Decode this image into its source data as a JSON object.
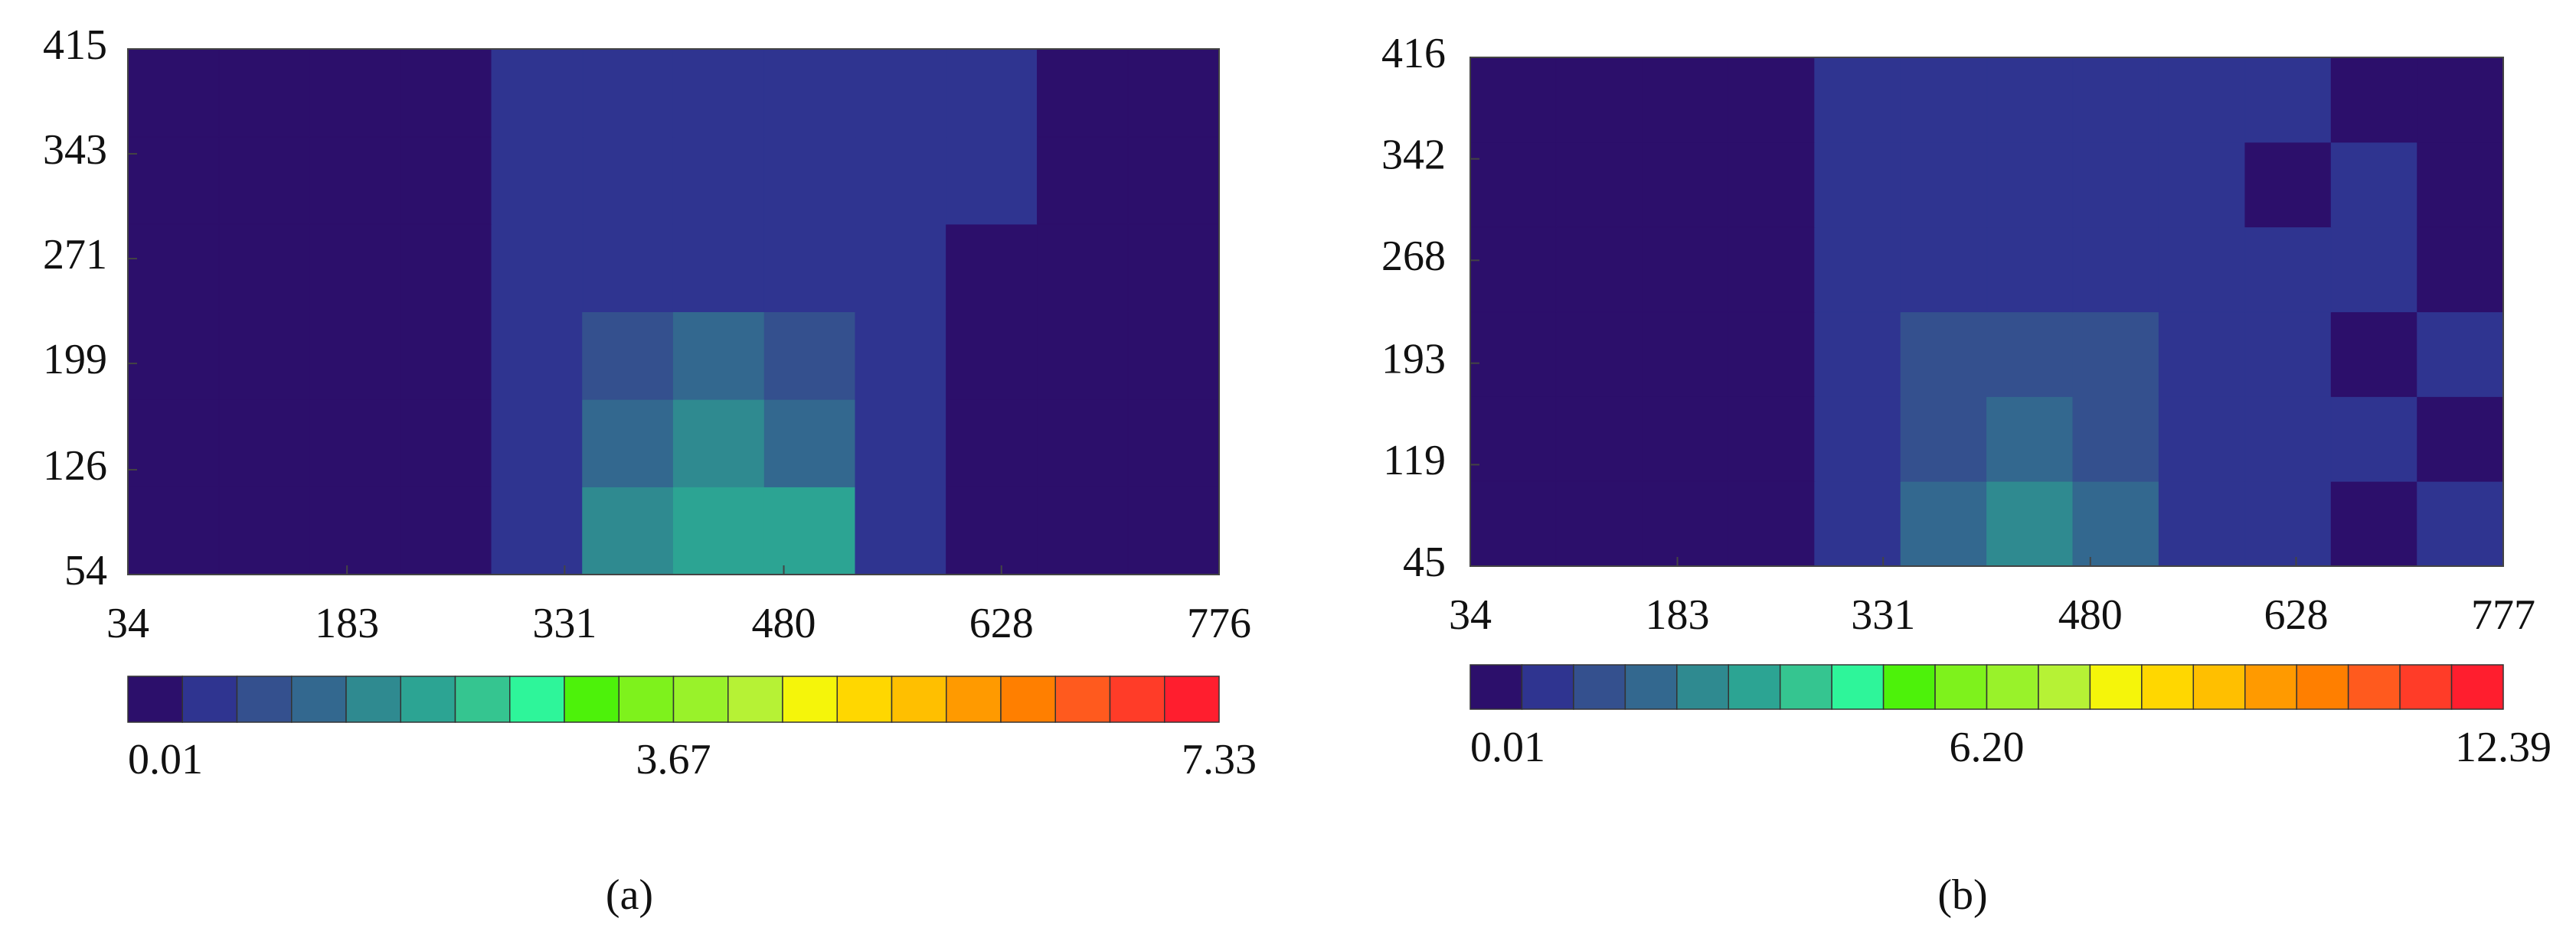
{
  "chart_data": [
    {
      "type": "contour",
      "caption": "(a)",
      "xlim": [
        34,
        776
      ],
      "xticks": [
        34,
        183,
        331,
        480,
        628,
        776
      ],
      "ylim": [
        54,
        415
      ],
      "yticks": [
        54,
        126,
        199,
        271,
        343,
        415
      ],
      "x": [
        64.9,
        126.8,
        188.6,
        250.4,
        312.3,
        374.1,
        435.9,
        497.8,
        559.6,
        621.4,
        683.3,
        745.1
      ],
      "y": [
        84.1,
        144.3,
        204.4,
        264.6,
        324.8,
        384.9
      ],
      "z": [
        [
          0.01,
          0.01,
          0.01,
          0.01,
          0.6,
          1.6,
          2.2,
          1.9,
          0.5,
          0.01,
          0.01,
          0.01
        ],
        [
          0.01,
          0.01,
          0.01,
          0.01,
          0.5,
          1.3,
          1.8,
          1.4,
          0.5,
          0.01,
          0.01,
          0.01
        ],
        [
          0.01,
          0.01,
          0.01,
          0.01,
          0.4,
          0.9,
          1.2,
          0.9,
          0.4,
          0.01,
          0.01,
          0.01
        ],
        [
          0.01,
          0.01,
          0.01,
          0.01,
          0.4,
          0.5,
          0.6,
          0.5,
          0.4,
          0.01,
          0.01,
          0.01
        ],
        [
          0.01,
          0.01,
          0.01,
          0.01,
          0.4,
          0.5,
          0.5,
          0.5,
          0.4,
          0.4,
          0.01,
          0.01
        ],
        [
          0.01,
          0.01,
          0.01,
          0.01,
          0.4,
          0.4,
          0.4,
          0.4,
          0.4,
          0.4,
          0.01,
          0.01
        ]
      ],
      "clim": [
        0.01,
        7.33
      ],
      "cticks": [
        0.01,
        3.67,
        7.33
      ],
      "colors": [
        "#2c0f6b",
        "#2f3490",
        "#34508e",
        "#33688f",
        "#2f8a90",
        "#2ca493",
        "#35c590",
        "#2ef59a",
        "#4df20a",
        "#7ef21c",
        "#99f22a",
        "#b6f235",
        "#f5f50a",
        "#ffd700",
        "#ffbf00",
        "#ff9a00",
        "#ff7f00",
        "#ff5a1e",
        "#ff3c28",
        "#ff1e2e"
      ]
    },
    {
      "type": "contour",
      "caption": "(b)",
      "xlim": [
        34,
        777
      ],
      "xticks": [
        34,
        183,
        331,
        480,
        628,
        777
      ],
      "ylim": [
        45,
        416
      ],
      "yticks": [
        45,
        119,
        193,
        268,
        342,
        416
      ],
      "x": [
        65.0,
        126.9,
        188.8,
        250.8,
        312.7,
        374.6,
        436.5,
        498.4,
        560.3,
        622.3,
        684.2,
        746.1
      ],
      "y": [
        75.9,
        137.8,
        199.6,
        261.4,
        323.3,
        385.1
      ],
      "z": [
        [
          0.01,
          0.01,
          0.01,
          0.01,
          0.8,
          2.0,
          2.6,
          2.3,
          0.8,
          0.7,
          0.5,
          0.7
        ],
        [
          0.01,
          0.01,
          0.01,
          0.01,
          0.8,
          1.6,
          2.2,
          1.7,
          0.8,
          0.7,
          0.7,
          0.5
        ],
        [
          0.01,
          0.01,
          0.01,
          0.01,
          0.8,
          1.3,
          1.7,
          1.3,
          0.8,
          0.7,
          0.5,
          0.7
        ],
        [
          0.01,
          0.01,
          0.01,
          0.01,
          0.7,
          0.8,
          0.9,
          0.8,
          0.8,
          0.7,
          0.7,
          0.5
        ],
        [
          0.01,
          0.01,
          0.01,
          0.01,
          0.7,
          0.8,
          0.8,
          0.8,
          0.8,
          0.5,
          0.7,
          0.5
        ],
        [
          0.01,
          0.01,
          0.01,
          0.01,
          0.7,
          0.7,
          0.8,
          0.8,
          0.8,
          0.7,
          0.5,
          0.5
        ]
      ],
      "clim": [
        0.01,
        12.39
      ],
      "cticks": [
        0.01,
        {
          "value": 6.2,
          "label": "6.20"
        },
        12.39
      ],
      "colors": [
        "#2c0f6b",
        "#2f3490",
        "#34508e",
        "#33688f",
        "#2f8a90",
        "#2ca493",
        "#35c590",
        "#2ef59a",
        "#4df20a",
        "#7ef21c",
        "#99f22a",
        "#b6f235",
        "#f5f50a",
        "#ffd700",
        "#ffbf00",
        "#ff9a00",
        "#ff7f00",
        "#ff5a1e",
        "#ff3c28",
        "#ff1e2e"
      ]
    }
  ]
}
